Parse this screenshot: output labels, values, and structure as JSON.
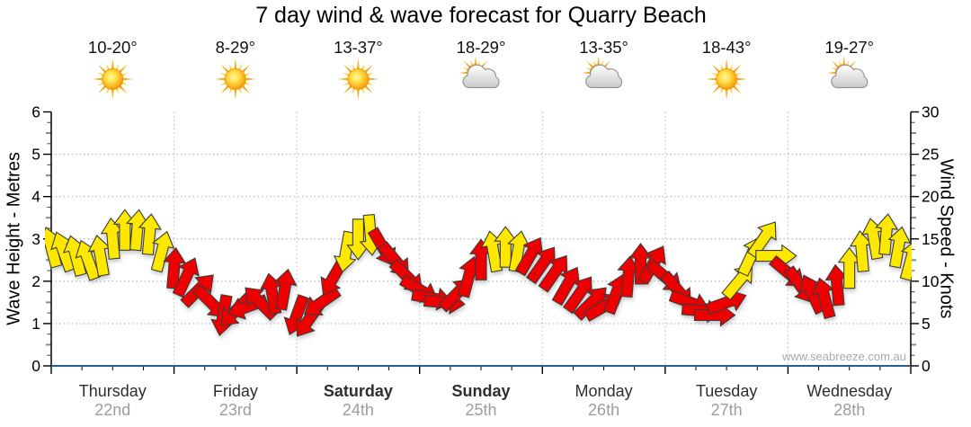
{
  "title": "7 day wind & wave forecast for Quarry Beach",
  "watermark": "www.seabreeze.com.au",
  "chart_data": {
    "type": "wind_forecast_arrows",
    "title": "7 day wind & wave forecast for Quarry Beach",
    "days": [
      {
        "name": "Thursday",
        "date": "22nd",
        "temp": "10-20°",
        "icon": "sun",
        "bold": false
      },
      {
        "name": "Friday",
        "date": "23rd",
        "temp": "8-29°",
        "icon": "sun",
        "bold": false
      },
      {
        "name": "Saturday",
        "date": "24th",
        "temp": "13-37°",
        "icon": "sun",
        "bold": true
      },
      {
        "name": "Sunday",
        "date": "25th",
        "temp": "18-29°",
        "icon": "sun-cloud",
        "bold": true
      },
      {
        "name": "Monday",
        "date": "26th",
        "temp": "13-35°",
        "icon": "sun-cloud",
        "bold": false
      },
      {
        "name": "Tuesday",
        "date": "27th",
        "temp": "18-43°",
        "icon": "sun",
        "bold": false
      },
      {
        "name": "Wednesday",
        "date": "28th",
        "temp": "19-27°",
        "icon": "sun-cloud",
        "bold": false
      }
    ],
    "left_axis": {
      "label": "Wave Height - Metres",
      "min": 0,
      "max": 6,
      "ticks": [
        0,
        1,
        2,
        3,
        4,
        5,
        6
      ]
    },
    "right_axis": {
      "label": "Wind Speed - Knots",
      "min": 0,
      "max": 30,
      "ticks": [
        0,
        5,
        10,
        15,
        20,
        25,
        30
      ]
    },
    "grid": {
      "horizontal_dotted": true,
      "vertical_dotted_at_day_boundaries": true
    },
    "points_per_day": 10,
    "point_format": [
      "wind_knots",
      "direction_deg_cw_from_up",
      "color_code"
    ],
    "wind_points": [
      [
        14,
        -15,
        "y"
      ],
      [
        13.5,
        -20,
        "y"
      ],
      [
        13,
        -15,
        "y"
      ],
      [
        12.5,
        -20,
        "y"
      ],
      [
        13,
        -10,
        "y"
      ],
      [
        15,
        -5,
        "y"
      ],
      [
        16,
        0,
        "y"
      ],
      [
        16,
        5,
        "y"
      ],
      [
        15.5,
        5,
        "y"
      ],
      [
        13.5,
        15,
        "y"
      ],
      [
        11.5,
        5,
        "r"
      ],
      [
        10.5,
        25,
        "r"
      ],
      [
        9,
        45,
        "r"
      ],
      [
        7.5,
        135,
        "r"
      ],
      [
        6,
        190,
        "r"
      ],
      [
        6.5,
        225,
        "r"
      ],
      [
        7,
        250,
        "r"
      ],
      [
        7.5,
        315,
        "r"
      ],
      [
        8.5,
        350,
        "r"
      ],
      [
        9,
        10,
        "r"
      ],
      [
        6,
        200,
        "r"
      ],
      [
        5.5,
        215,
        "r"
      ],
      [
        7.5,
        235,
        "r"
      ],
      [
        10.5,
        210,
        "r"
      ],
      [
        13.5,
        190,
        "y"
      ],
      [
        15,
        180,
        "y"
      ],
      [
        15.5,
        175,
        "y"
      ],
      [
        14,
        150,
        "r"
      ],
      [
        12.5,
        140,
        "r"
      ],
      [
        10.5,
        135,
        "r"
      ],
      [
        9,
        120,
        "r"
      ],
      [
        8,
        100,
        "r"
      ],
      [
        7.5,
        95,
        "r"
      ],
      [
        8.5,
        45,
        "r"
      ],
      [
        10.5,
        15,
        "r"
      ],
      [
        12.5,
        0,
        "r"
      ],
      [
        13.5,
        -10,
        "y"
      ],
      [
        14,
        0,
        "y"
      ],
      [
        13.5,
        10,
        "y"
      ],
      [
        13,
        30,
        "r"
      ],
      [
        12,
        35,
        "r"
      ],
      [
        11,
        35,
        "r"
      ],
      [
        9.5,
        30,
        "r"
      ],
      [
        8.5,
        35,
        "r"
      ],
      [
        7.5,
        45,
        "r"
      ],
      [
        7,
        60,
        "r"
      ],
      [
        8.5,
        20,
        "r"
      ],
      [
        10.5,
        5,
        "r"
      ],
      [
        12,
        0,
        "r"
      ],
      [
        12,
        30,
        "r"
      ],
      [
        10.5,
        130,
        "r"
      ],
      [
        9,
        140,
        "r"
      ],
      [
        7.5,
        110,
        "r"
      ],
      [
        6.5,
        95,
        "r"
      ],
      [
        6,
        90,
        "r"
      ],
      [
        7.5,
        70,
        "r"
      ],
      [
        10,
        40,
        "y"
      ],
      [
        13,
        25,
        "y"
      ],
      [
        15,
        35,
        "y"
      ],
      [
        13,
        90,
        "y"
      ],
      [
        11,
        130,
        "r"
      ],
      [
        9.5,
        145,
        "r"
      ],
      [
        8.5,
        -25,
        "r"
      ],
      [
        8,
        -15,
        "r"
      ],
      [
        9.5,
        -5,
        "r"
      ],
      [
        11.5,
        0,
        "y"
      ],
      [
        13.5,
        -5,
        "y"
      ],
      [
        15,
        -10,
        "y"
      ],
      [
        15.5,
        5,
        "y"
      ],
      [
        14,
        10,
        "y"
      ],
      [
        12.5,
        15,
        "y"
      ]
    ],
    "colors": {
      "yellow": "#ffe800",
      "red": "#ee0000",
      "outline": "#3a3a3a",
      "grid": "#b4b4b4",
      "grid_v": "#c4c4c4",
      "x_axis": "#2a5d8c",
      "axis": "#000000",
      "day_label": "#2e2e2e",
      "date_label": "#9d9d9d",
      "tick_label": "#000000",
      "temp_label": "#111111"
    }
  }
}
